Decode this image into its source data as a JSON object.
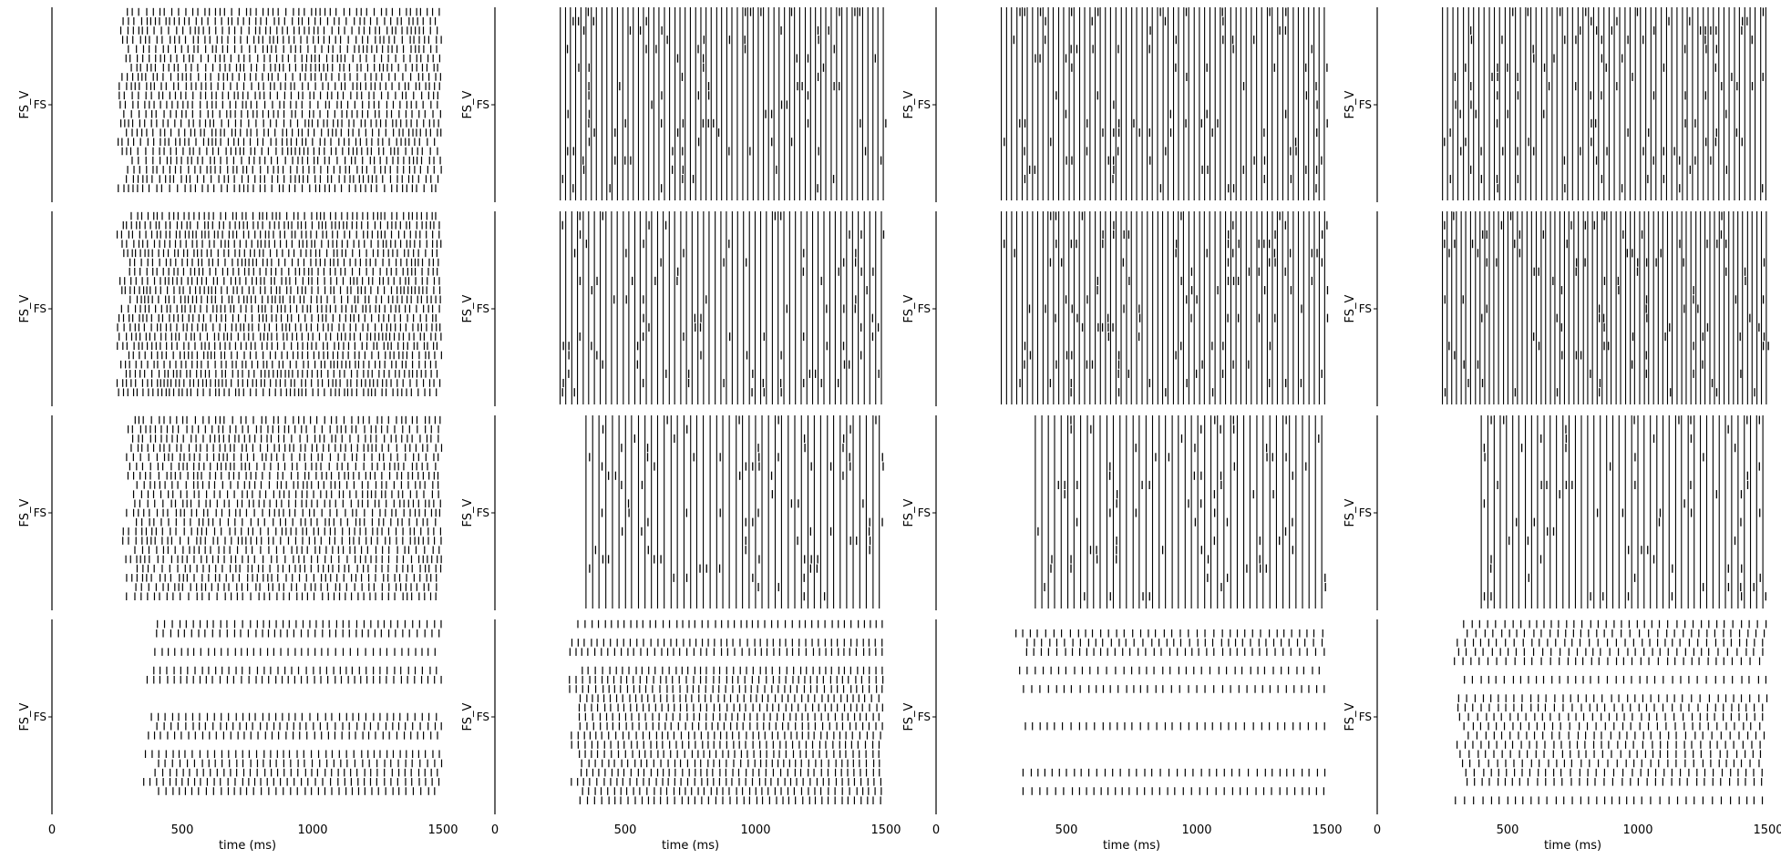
{
  "chart_data": {
    "type": "raster",
    "layout": {
      "rows": 4,
      "cols": 4
    },
    "xlim": [
      0,
      1500
    ],
    "x_ticks": [
      {
        "value": 0,
        "label": "0"
      },
      {
        "value": 500,
        "label": "500"
      },
      {
        "value": 1000,
        "label": "1000"
      },
      {
        "value": 1500,
        "label": "1500"
      }
    ],
    "xlabel": "time (ms)",
    "ylabel": "FS_V",
    "y_tick_label": "FS",
    "colors": {
      "spikes": "#000000",
      "axes": "#000000",
      "background": "#ffffff"
    },
    "panels": [
      {
        "row": 0,
        "col": 0,
        "pattern": "irregular-dense",
        "neurons": 20,
        "spike_start_ms": 250,
        "rate_hz": 45
      },
      {
        "row": 0,
        "col": 1,
        "pattern": "synchronous",
        "neurons": 20,
        "spike_start_ms": 250,
        "period_ms": 20
      },
      {
        "row": 0,
        "col": 2,
        "pattern": "synchronous",
        "neurons": 20,
        "spike_start_ms": 250,
        "period_ms": 20
      },
      {
        "row": 0,
        "col": 3,
        "pattern": "synchronous",
        "neurons": 20,
        "spike_start_ms": 250,
        "period_ms": 20
      },
      {
        "row": 1,
        "col": 0,
        "pattern": "irregular-dense",
        "neurons": 20,
        "spike_start_ms": 250,
        "rate_hz": 50
      },
      {
        "row": 1,
        "col": 1,
        "pattern": "synchronous",
        "neurons": 20,
        "spike_start_ms": 250,
        "period_ms": 22
      },
      {
        "row": 1,
        "col": 2,
        "pattern": "synchronous",
        "neurons": 20,
        "spike_start_ms": 250,
        "period_ms": 20
      },
      {
        "row": 1,
        "col": 3,
        "pattern": "synchronous",
        "neurons": 20,
        "spike_start_ms": 250,
        "period_ms": 18
      },
      {
        "row": 2,
        "col": 0,
        "pattern": "irregular-dense",
        "neurons": 20,
        "spike_start_ms": 270,
        "rate_hz": 42
      },
      {
        "row": 2,
        "col": 1,
        "pattern": "synchronous",
        "neurons": 20,
        "spike_start_ms": 350,
        "period_ms": 25
      },
      {
        "row": 2,
        "col": 2,
        "pattern": "synchronous",
        "neurons": 20,
        "spike_start_ms": 380,
        "period_ms": 25
      },
      {
        "row": 2,
        "col": 3,
        "pattern": "synchronous",
        "neurons": 20,
        "spike_start_ms": 400,
        "period_ms": 24
      },
      {
        "row": 3,
        "col": 0,
        "pattern": "irregular-sparse",
        "neurons": 20,
        "spike_start_ms": 350,
        "rate_hz": 38
      },
      {
        "row": 3,
        "col": 1,
        "pattern": "mixed",
        "neurons": 20,
        "spike_start_ms": 280,
        "period_ms": 25
      },
      {
        "row": 3,
        "col": 2,
        "pattern": "sparse-regular",
        "neurons": 20,
        "spike_start_ms": 290,
        "period_ms": 30
      },
      {
        "row": 3,
        "col": 3,
        "pattern": "sparse-regular",
        "neurons": 20,
        "spike_start_ms": 290,
        "period_ms": 32
      }
    ]
  }
}
